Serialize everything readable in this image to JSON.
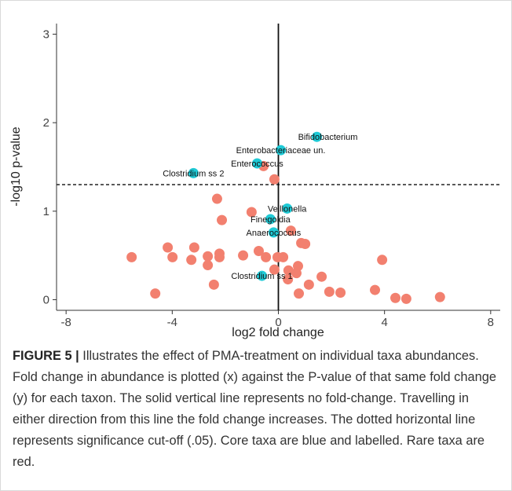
{
  "chart_data": {
    "type": "scatter",
    "xlabel": "log2 fold change",
    "ylabel": "-log10 p-value",
    "xlim": [
      -8.36,
      8.36
    ],
    "ylim": [
      -0.12,
      3.12
    ],
    "xticks": [
      -8,
      -4,
      0,
      4,
      8
    ],
    "yticks": [
      0,
      1,
      2,
      3
    ],
    "hline": 1.3,
    "vline": 0,
    "series": [
      {
        "color": "#f2806f",
        "x": [
          -5.53,
          -4.64,
          -4.17,
          -3.99,
          -3.28,
          -3.17,
          -2.66,
          -2.66,
          -2.43,
          -2.31,
          -2.22,
          -2.22,
          -2.13,
          -1.33,
          -1.01,
          -0.74,
          -0.56,
          -0.47,
          -0.15,
          -0.15,
          -0.03,
          0.18,
          0.38,
          0.68,
          0.74,
          0.77,
          0.47,
          0.86,
          1.01,
          1.15,
          1.63,
          1.92,
          2.34,
          3.64,
          3.91,
          4.41,
          4.82,
          6.09,
          0.36
        ],
        "values": [
          0.48,
          0.07,
          0.59,
          0.48,
          0.45,
          0.59,
          0.49,
          0.39,
          0.17,
          1.14,
          0.52,
          0.48,
          0.9,
          0.5,
          0.99,
          0.55,
          1.51,
          0.48,
          1.36,
          0.34,
          0.48,
          0.48,
          0.33,
          0.3,
          0.38,
          0.07,
          0.78,
          0.64,
          0.63,
          0.17,
          0.26,
          0.09,
          0.08,
          0.11,
          0.45,
          0.02,
          0.01,
          0.03,
          0.23
        ]
      },
      {
        "color": "#1fcad6",
        "x": [
          1.45,
          0.09,
          -0.8,
          -3.2,
          0.33,
          -0.3,
          -0.18,
          -0.62
        ],
        "values": [
          1.84,
          1.69,
          1.54,
          1.43,
          1.03,
          0.91,
          0.76,
          0.27
        ],
        "labels": [
          "Bifidobacterium",
          "Enterobacteriaceae un.",
          "Enterococcus",
          "Clostridium ss 2",
          "Veillonella",
          "Finegoldia",
          "Anaerococcus",
          "Clostridium ss 1"
        ]
      }
    ]
  },
  "caption": {
    "label": "FIGURE 5 |",
    "text": "Illustrates the effect of PMA-treatment on individual taxa abundances.  Fold change in abundance is plotted (x) against the P-value of that same fold change (y) for each taxon. The solid vertical line represents no fold-change. Travelling in either direction from this line the fold change increases. The dotted horizontal line represents significance cut-off (.05). Core taxa are blue and labelled. Rare taxa are red."
  }
}
